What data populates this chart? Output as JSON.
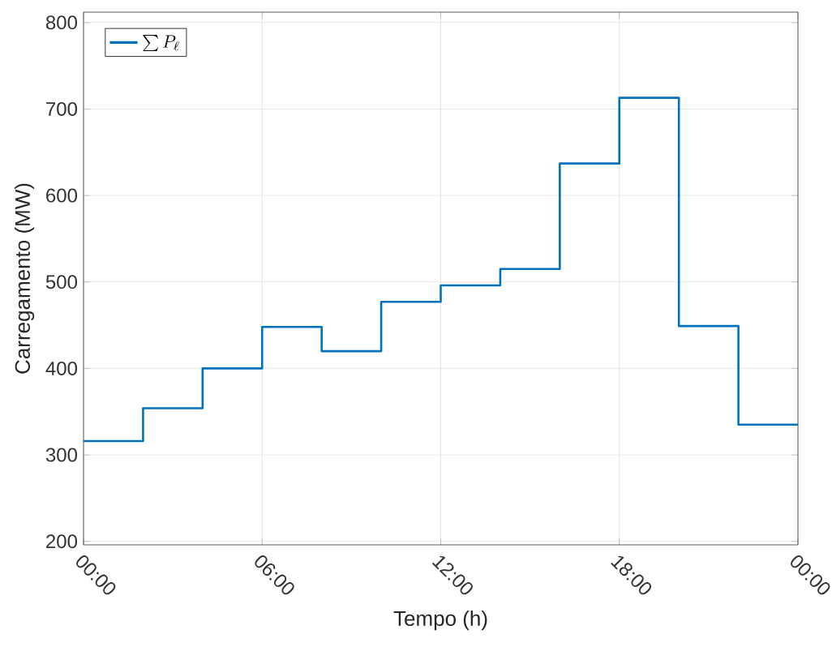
{
  "chart_data": {
    "type": "step",
    "xlabel": "Tempo (h)",
    "ylabel": "Carregamento (MW)",
    "x": [
      0,
      2,
      4,
      6,
      8,
      10,
      12,
      14,
      16,
      18,
      20,
      22,
      24
    ],
    "series": [
      {
        "name": "\\sum P_\\ell",
        "color": "#0072bd",
        "values": [
          316,
          354,
          400,
          448,
          420,
          477,
          496,
          515,
          637,
          713,
          449,
          335,
          335
        ]
      }
    ],
    "xlim": [
      0,
      24
    ],
    "xticks": [
      {
        "value": 0,
        "label": "00:00"
      },
      {
        "value": 6,
        "label": "06:00"
      },
      {
        "value": 12,
        "label": "12:00"
      },
      {
        "value": 18,
        "label": "18:00"
      },
      {
        "value": 24,
        "label": "00:00"
      }
    ],
    "ylim": [
      196,
      812
    ],
    "yticks": [
      200,
      300,
      400,
      500,
      600,
      700,
      800
    ],
    "grid": true,
    "legend": "top left",
    "marker": "none",
    "line_style": "solid"
  }
}
